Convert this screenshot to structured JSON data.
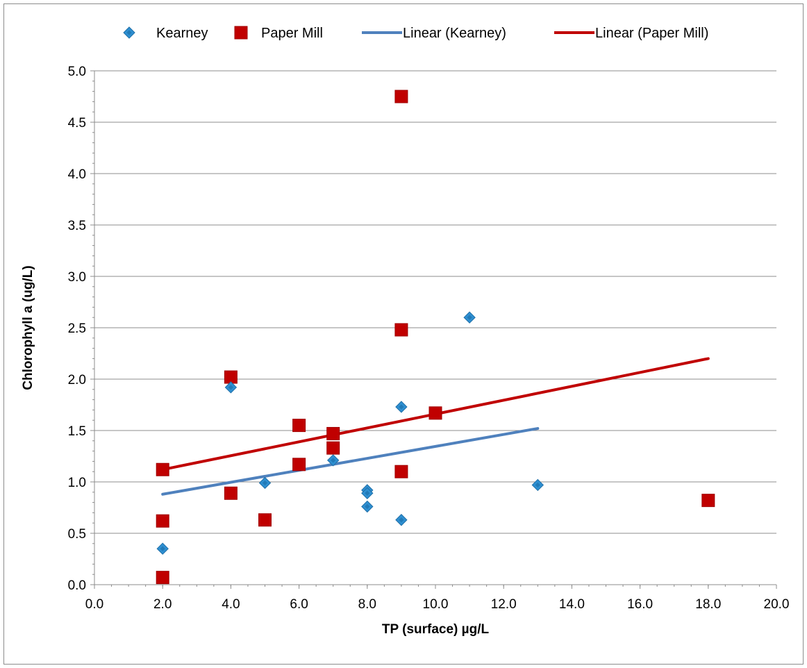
{
  "chart_data": {
    "type": "scatter",
    "title": "",
    "xlabel": "TP (surface) µg/L",
    "ylabel": "Chlorophyll a (ug/L)",
    "xlim": [
      0,
      20
    ],
    "ylim": [
      0,
      5
    ],
    "x_ticks": [
      "0.0",
      "2.0",
      "4.0",
      "6.0",
      "8.0",
      "10.0",
      "12.0",
      "14.0",
      "16.0",
      "18.0",
      "20.0"
    ],
    "y_ticks": [
      "0.0",
      "0.5",
      "1.0",
      "1.5",
      "2.0",
      "2.5",
      "3.0",
      "3.5",
      "4.0",
      "4.5",
      "5.0"
    ],
    "grid": "horizontal",
    "legend_position": "top",
    "series": [
      {
        "name": "Kearney",
        "marker": "diamond",
        "color": "#2e8fd1",
        "points": [
          {
            "x": 2,
            "y": 0.35
          },
          {
            "x": 4,
            "y": 1.92
          },
          {
            "x": 5,
            "y": 0.99
          },
          {
            "x": 7,
            "y": 1.21
          },
          {
            "x": 8,
            "y": 0.92
          },
          {
            "x": 8,
            "y": 0.89
          },
          {
            "x": 8,
            "y": 0.76
          },
          {
            "x": 9,
            "y": 1.73
          },
          {
            "x": 9,
            "y": 0.63
          },
          {
            "x": 11,
            "y": 2.6
          },
          {
            "x": 13,
            "y": 0.97
          }
        ]
      },
      {
        "name": "Paper Mill",
        "marker": "square",
        "color": "#c00000",
        "points": [
          {
            "x": 2,
            "y": 1.12
          },
          {
            "x": 2,
            "y": 0.62
          },
          {
            "x": 2,
            "y": 0.07
          },
          {
            "x": 4,
            "y": 2.02
          },
          {
            "x": 4,
            "y": 0.89
          },
          {
            "x": 5,
            "y": 0.63
          },
          {
            "x": 6,
            "y": 1.55
          },
          {
            "x": 6,
            "y": 1.17
          },
          {
            "x": 7,
            "y": 1.47
          },
          {
            "x": 7,
            "y": 1.33
          },
          {
            "x": 9,
            "y": 4.75
          },
          {
            "x": 9,
            "y": 2.48
          },
          {
            "x": 9,
            "y": 1.1
          },
          {
            "x": 10,
            "y": 1.67
          },
          {
            "x": 18,
            "y": 0.82
          }
        ]
      }
    ],
    "trendlines": [
      {
        "name": "Linear (Kearney)",
        "color": "#4f81bd",
        "x": [
          2,
          13
        ],
        "y": [
          0.88,
          1.52
        ]
      },
      {
        "name": "Linear (Paper Mill)",
        "color": "#c00000",
        "x": [
          2,
          18
        ],
        "y": [
          1.12,
          2.2
        ]
      }
    ]
  }
}
